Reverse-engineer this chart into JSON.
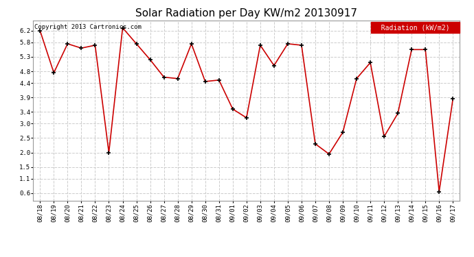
{
  "title": "Solar Radiation per Day KW/m2 20130917",
  "copyright_text": "Copyright 2013 Cartronics.com",
  "legend_label": "Radiation (kW/m2)",
  "dates": [
    "08/18",
    "08/19",
    "08/20",
    "08/21",
    "08/22",
    "08/23",
    "08/24",
    "08/25",
    "08/26",
    "08/27",
    "08/28",
    "08/29",
    "08/30",
    "08/31",
    "09/01",
    "09/02",
    "09/03",
    "09/04",
    "09/05",
    "09/06",
    "09/07",
    "09/08",
    "09/09",
    "09/10",
    "09/11",
    "09/12",
    "09/13",
    "09/14",
    "09/15",
    "09/16",
    "09/17"
  ],
  "values": [
    6.2,
    4.75,
    5.75,
    5.6,
    5.7,
    2.0,
    6.3,
    5.75,
    5.2,
    4.6,
    4.55,
    5.75,
    4.45,
    4.5,
    3.5,
    3.2,
    5.7,
    5.0,
    5.75,
    5.7,
    2.3,
    1.95,
    2.7,
    4.55,
    5.1,
    2.55,
    3.35,
    5.55,
    5.55,
    0.65,
    3.85
  ],
  "yticks": [
    0.6,
    1.1,
    1.5,
    2.0,
    2.5,
    3.0,
    3.4,
    3.9,
    4.4,
    4.8,
    5.3,
    5.8,
    6.2
  ],
  "ylim": [
    0.35,
    6.55
  ],
  "line_color": "#cc0000",
  "marker_color": "black",
  "grid_color": "#cccccc",
  "bg_color": "#ffffff",
  "plot_bg_color": "#ffffff",
  "legend_bg": "#cc0000",
  "legend_text_color": "white",
  "title_fontsize": 11,
  "copyright_fontsize": 6.5,
  "tick_fontsize": 6.5,
  "legend_fontsize": 7
}
